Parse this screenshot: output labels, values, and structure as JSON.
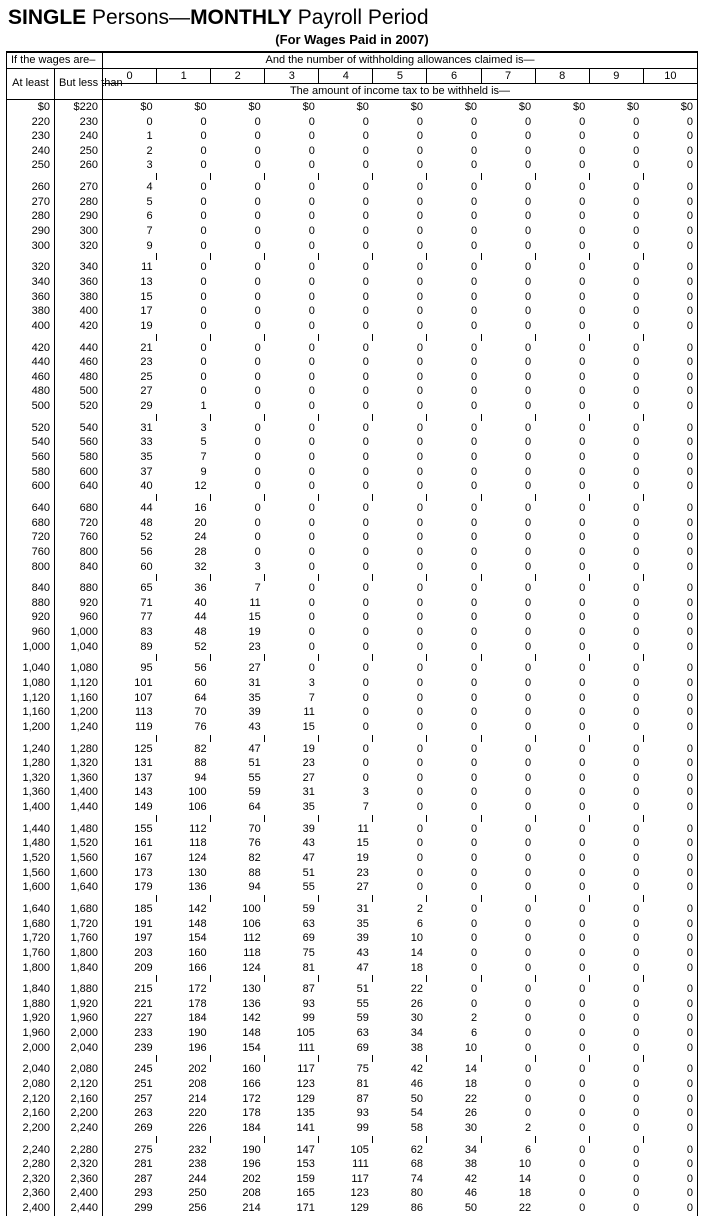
{
  "title_part1": "SINGLE",
  "title_mid": " Persons—",
  "title_part2": "MONTHLY",
  "title_end": " Payroll Period",
  "subtitle": "(For Wages Paid in 2007)",
  "hdr_wages": "If the wages are–",
  "hdr_allow": "And the number of withholding allowances claimed is—",
  "hdr_atleast": "At least",
  "hdr_butless": "But less than",
  "hdr_withheld": "The amount of income tax to be withheld is—",
  "allow_cols": [
    "0",
    "1",
    "2",
    "3",
    "4",
    "5",
    "6",
    "7",
    "8",
    "9",
    "10"
  ],
  "groups": [
    [
      [
        "$0",
        "$220",
        "$0",
        "$0",
        "$0",
        "$0",
        "$0",
        "$0",
        "$0",
        "$0",
        "$0",
        "$0",
        "$0"
      ],
      [
        "220",
        "230",
        "0",
        "0",
        "0",
        "0",
        "0",
        "0",
        "0",
        "0",
        "0",
        "0",
        "0"
      ],
      [
        "230",
        "240",
        "1",
        "0",
        "0",
        "0",
        "0",
        "0",
        "0",
        "0",
        "0",
        "0",
        "0"
      ],
      [
        "240",
        "250",
        "2",
        "0",
        "0",
        "0",
        "0",
        "0",
        "0",
        "0",
        "0",
        "0",
        "0"
      ],
      [
        "250",
        "260",
        "3",
        "0",
        "0",
        "0",
        "0",
        "0",
        "0",
        "0",
        "0",
        "0",
        "0"
      ]
    ],
    [
      [
        "260",
        "270",
        "4",
        "0",
        "0",
        "0",
        "0",
        "0",
        "0",
        "0",
        "0",
        "0",
        "0"
      ],
      [
        "270",
        "280",
        "5",
        "0",
        "0",
        "0",
        "0",
        "0",
        "0",
        "0",
        "0",
        "0",
        "0"
      ],
      [
        "280",
        "290",
        "6",
        "0",
        "0",
        "0",
        "0",
        "0",
        "0",
        "0",
        "0",
        "0",
        "0"
      ],
      [
        "290",
        "300",
        "7",
        "0",
        "0",
        "0",
        "0",
        "0",
        "0",
        "0",
        "0",
        "0",
        "0"
      ],
      [
        "300",
        "320",
        "9",
        "0",
        "0",
        "0",
        "0",
        "0",
        "0",
        "0",
        "0",
        "0",
        "0"
      ]
    ],
    [
      [
        "320",
        "340",
        "11",
        "0",
        "0",
        "0",
        "0",
        "0",
        "0",
        "0",
        "0",
        "0",
        "0"
      ],
      [
        "340",
        "360",
        "13",
        "0",
        "0",
        "0",
        "0",
        "0",
        "0",
        "0",
        "0",
        "0",
        "0"
      ],
      [
        "360",
        "380",
        "15",
        "0",
        "0",
        "0",
        "0",
        "0",
        "0",
        "0",
        "0",
        "0",
        "0"
      ],
      [
        "380",
        "400",
        "17",
        "0",
        "0",
        "0",
        "0",
        "0",
        "0",
        "0",
        "0",
        "0",
        "0"
      ],
      [
        "400",
        "420",
        "19",
        "0",
        "0",
        "0",
        "0",
        "0",
        "0",
        "0",
        "0",
        "0",
        "0"
      ]
    ],
    [
      [
        "420",
        "440",
        "21",
        "0",
        "0",
        "0",
        "0",
        "0",
        "0",
        "0",
        "0",
        "0",
        "0"
      ],
      [
        "440",
        "460",
        "23",
        "0",
        "0",
        "0",
        "0",
        "0",
        "0",
        "0",
        "0",
        "0",
        "0"
      ],
      [
        "460",
        "480",
        "25",
        "0",
        "0",
        "0",
        "0",
        "0",
        "0",
        "0",
        "0",
        "0",
        "0"
      ],
      [
        "480",
        "500",
        "27",
        "0",
        "0",
        "0",
        "0",
        "0",
        "0",
        "0",
        "0",
        "0",
        "0"
      ],
      [
        "500",
        "520",
        "29",
        "1",
        "0",
        "0",
        "0",
        "0",
        "0",
        "0",
        "0",
        "0",
        "0"
      ]
    ],
    [
      [
        "520",
        "540",
        "31",
        "3",
        "0",
        "0",
        "0",
        "0",
        "0",
        "0",
        "0",
        "0",
        "0"
      ],
      [
        "540",
        "560",
        "33",
        "5",
        "0",
        "0",
        "0",
        "0",
        "0",
        "0",
        "0",
        "0",
        "0"
      ],
      [
        "560",
        "580",
        "35",
        "7",
        "0",
        "0",
        "0",
        "0",
        "0",
        "0",
        "0",
        "0",
        "0"
      ],
      [
        "580",
        "600",
        "37",
        "9",
        "0",
        "0",
        "0",
        "0",
        "0",
        "0",
        "0",
        "0",
        "0"
      ],
      [
        "600",
        "640",
        "40",
        "12",
        "0",
        "0",
        "0",
        "0",
        "0",
        "0",
        "0",
        "0",
        "0"
      ]
    ],
    [
      [
        "640",
        "680",
        "44",
        "16",
        "0",
        "0",
        "0",
        "0",
        "0",
        "0",
        "0",
        "0",
        "0"
      ],
      [
        "680",
        "720",
        "48",
        "20",
        "0",
        "0",
        "0",
        "0",
        "0",
        "0",
        "0",
        "0",
        "0"
      ],
      [
        "720",
        "760",
        "52",
        "24",
        "0",
        "0",
        "0",
        "0",
        "0",
        "0",
        "0",
        "0",
        "0"
      ],
      [
        "760",
        "800",
        "56",
        "28",
        "0",
        "0",
        "0",
        "0",
        "0",
        "0",
        "0",
        "0",
        "0"
      ],
      [
        "800",
        "840",
        "60",
        "32",
        "3",
        "0",
        "0",
        "0",
        "0",
        "0",
        "0",
        "0",
        "0"
      ]
    ],
    [
      [
        "840",
        "880",
        "65",
        "36",
        "7",
        "0",
        "0",
        "0",
        "0",
        "0",
        "0",
        "0",
        "0"
      ],
      [
        "880",
        "920",
        "71",
        "40",
        "11",
        "0",
        "0",
        "0",
        "0",
        "0",
        "0",
        "0",
        "0"
      ],
      [
        "920",
        "960",
        "77",
        "44",
        "15",
        "0",
        "0",
        "0",
        "0",
        "0",
        "0",
        "0",
        "0"
      ],
      [
        "960",
        "1,000",
        "83",
        "48",
        "19",
        "0",
        "0",
        "0",
        "0",
        "0",
        "0",
        "0",
        "0"
      ],
      [
        "1,000",
        "1,040",
        "89",
        "52",
        "23",
        "0",
        "0",
        "0",
        "0",
        "0",
        "0",
        "0",
        "0"
      ]
    ],
    [
      [
        "1,040",
        "1,080",
        "95",
        "56",
        "27",
        "0",
        "0",
        "0",
        "0",
        "0",
        "0",
        "0",
        "0"
      ],
      [
        "1,080",
        "1,120",
        "101",
        "60",
        "31",
        "3",
        "0",
        "0",
        "0",
        "0",
        "0",
        "0",
        "0"
      ],
      [
        "1,120",
        "1,160",
        "107",
        "64",
        "35",
        "7",
        "0",
        "0",
        "0",
        "0",
        "0",
        "0",
        "0"
      ],
      [
        "1,160",
        "1,200",
        "113",
        "70",
        "39",
        "11",
        "0",
        "0",
        "0",
        "0",
        "0",
        "0",
        "0"
      ],
      [
        "1,200",
        "1,240",
        "119",
        "76",
        "43",
        "15",
        "0",
        "0",
        "0",
        "0",
        "0",
        "0",
        "0"
      ]
    ],
    [
      [
        "1,240",
        "1,280",
        "125",
        "82",
        "47",
        "19",
        "0",
        "0",
        "0",
        "0",
        "0",
        "0",
        "0"
      ],
      [
        "1,280",
        "1,320",
        "131",
        "88",
        "51",
        "23",
        "0",
        "0",
        "0",
        "0",
        "0",
        "0",
        "0"
      ],
      [
        "1,320",
        "1,360",
        "137",
        "94",
        "55",
        "27",
        "0",
        "0",
        "0",
        "0",
        "0",
        "0",
        "0"
      ],
      [
        "1,360",
        "1,400",
        "143",
        "100",
        "59",
        "31",
        "3",
        "0",
        "0",
        "0",
        "0",
        "0",
        "0"
      ],
      [
        "1,400",
        "1,440",
        "149",
        "106",
        "64",
        "35",
        "7",
        "0",
        "0",
        "0",
        "0",
        "0",
        "0"
      ]
    ],
    [
      [
        "1,440",
        "1,480",
        "155",
        "112",
        "70",
        "39",
        "11",
        "0",
        "0",
        "0",
        "0",
        "0",
        "0"
      ],
      [
        "1,480",
        "1,520",
        "161",
        "118",
        "76",
        "43",
        "15",
        "0",
        "0",
        "0",
        "0",
        "0",
        "0"
      ],
      [
        "1,520",
        "1,560",
        "167",
        "124",
        "82",
        "47",
        "19",
        "0",
        "0",
        "0",
        "0",
        "0",
        "0"
      ],
      [
        "1,560",
        "1,600",
        "173",
        "130",
        "88",
        "51",
        "23",
        "0",
        "0",
        "0",
        "0",
        "0",
        "0"
      ],
      [
        "1,600",
        "1,640",
        "179",
        "136",
        "94",
        "55",
        "27",
        "0",
        "0",
        "0",
        "0",
        "0",
        "0"
      ]
    ],
    [
      [
        "1,640",
        "1,680",
        "185",
        "142",
        "100",
        "59",
        "31",
        "2",
        "0",
        "0",
        "0",
        "0",
        "0"
      ],
      [
        "1,680",
        "1,720",
        "191",
        "148",
        "106",
        "63",
        "35",
        "6",
        "0",
        "0",
        "0",
        "0",
        "0"
      ],
      [
        "1,720",
        "1,760",
        "197",
        "154",
        "112",
        "69",
        "39",
        "10",
        "0",
        "0",
        "0",
        "0",
        "0"
      ],
      [
        "1,760",
        "1,800",
        "203",
        "160",
        "118",
        "75",
        "43",
        "14",
        "0",
        "0",
        "0",
        "0",
        "0"
      ],
      [
        "1,800",
        "1,840",
        "209",
        "166",
        "124",
        "81",
        "47",
        "18",
        "0",
        "0",
        "0",
        "0",
        "0"
      ]
    ],
    [
      [
        "1,840",
        "1,880",
        "215",
        "172",
        "130",
        "87",
        "51",
        "22",
        "0",
        "0",
        "0",
        "0",
        "0"
      ],
      [
        "1,880",
        "1,920",
        "221",
        "178",
        "136",
        "93",
        "55",
        "26",
        "0",
        "0",
        "0",
        "0",
        "0"
      ],
      [
        "1,920",
        "1,960",
        "227",
        "184",
        "142",
        "99",
        "59",
        "30",
        "2",
        "0",
        "0",
        "0",
        "0"
      ],
      [
        "1,960",
        "2,000",
        "233",
        "190",
        "148",
        "105",
        "63",
        "34",
        "6",
        "0",
        "0",
        "0",
        "0"
      ],
      [
        "2,000",
        "2,040",
        "239",
        "196",
        "154",
        "111",
        "69",
        "38",
        "10",
        "0",
        "0",
        "0",
        "0"
      ]
    ],
    [
      [
        "2,040",
        "2,080",
        "245",
        "202",
        "160",
        "117",
        "75",
        "42",
        "14",
        "0",
        "0",
        "0",
        "0"
      ],
      [
        "2,080",
        "2,120",
        "251",
        "208",
        "166",
        "123",
        "81",
        "46",
        "18",
        "0",
        "0",
        "0",
        "0"
      ],
      [
        "2,120",
        "2,160",
        "257",
        "214",
        "172",
        "129",
        "87",
        "50",
        "22",
        "0",
        "0",
        "0",
        "0"
      ],
      [
        "2,160",
        "2,200",
        "263",
        "220",
        "178",
        "135",
        "93",
        "54",
        "26",
        "0",
        "0",
        "0",
        "0"
      ],
      [
        "2,200",
        "2,240",
        "269",
        "226",
        "184",
        "141",
        "99",
        "58",
        "30",
        "2",
        "0",
        "0",
        "0"
      ]
    ],
    [
      [
        "2,240",
        "2,280",
        "275",
        "232",
        "190",
        "147",
        "105",
        "62",
        "34",
        "6",
        "0",
        "0",
        "0"
      ],
      [
        "2,280",
        "2,320",
        "281",
        "238",
        "196",
        "153",
        "111",
        "68",
        "38",
        "10",
        "0",
        "0",
        "0"
      ],
      [
        "2,320",
        "2,360",
        "287",
        "244",
        "202",
        "159",
        "117",
        "74",
        "42",
        "14",
        "0",
        "0",
        "0"
      ],
      [
        "2,360",
        "2,400",
        "293",
        "250",
        "208",
        "165",
        "123",
        "80",
        "46",
        "18",
        "0",
        "0",
        "0"
      ],
      [
        "2,400",
        "2,440",
        "299",
        "256",
        "214",
        "171",
        "129",
        "86",
        "50",
        "22",
        "0",
        "0",
        "0"
      ]
    ]
  ]
}
